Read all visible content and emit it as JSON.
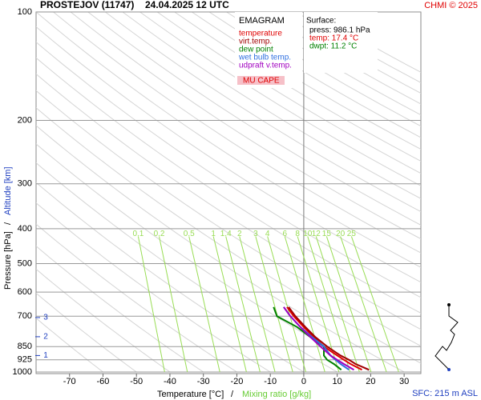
{
  "chart_data": {
    "type": "line",
    "title": "PROSTEJOV (11747)",
    "subtitle": "24.04.2025 12 UTC",
    "credit": "CHMI © 2025",
    "x_label": "Temperature [°C]",
    "x_label_sep": "/",
    "x_label2": "Mixing ratio [g/kg]",
    "y_label": "Pressure [hPa]",
    "y_label_sep": "/",
    "y_label2": "Altitude [km]",
    "y_log": true,
    "xlim": [
      -80,
      35
    ],
    "xticks": [
      -70,
      -60,
      -50,
      -40,
      -30,
      -20,
      -10,
      0,
      10,
      20,
      30
    ],
    "ylim": [
      1000,
      100
    ],
    "yticks": [
      100,
      200,
      300,
      400,
      500,
      600,
      700,
      850,
      925,
      1000
    ],
    "legend_title": "EMAGRAM",
    "legend": "top-right",
    "cape_label": "MU CAPE",
    "surface": {
      "title": "Surface:",
      "lines": [
        {
          "text": "press: 986.1 hPa",
          "color": "#000000"
        },
        {
          "text": "temp: 17.4 °C",
          "color": "#e00000"
        },
        {
          "text": "dwpt: 11.2 °C",
          "color": "#008000"
        }
      ]
    },
    "footer": "SFC: 215 m ASL",
    "altitude_ticks": [
      {
        "value": 1,
        "pressure": 900
      },
      {
        "value": 2,
        "pressure": 798
      },
      {
        "value": 3,
        "pressure": 706
      }
    ],
    "mixing_ratio_color": "#99dd55",
    "mixing_ratios": [
      0.1,
      0.2,
      0.5,
      1,
      1.4,
      2,
      3,
      4,
      6,
      8,
      10,
      12,
      15,
      20,
      25
    ],
    "pressure": [
      986,
      950,
      925,
      900,
      850,
      800,
      750,
      700,
      660
    ],
    "series": [
      {
        "name": "temperature",
        "color": "#e00000",
        "values": [
          17.4,
          14,
          12,
          10,
          6,
          3,
          0,
          -3,
          -5
        ]
      },
      {
        "name": "virt.temp.",
        "color": "#a00000",
        "values": [
          19.5,
          15.5,
          13.5,
          11,
          7,
          3.5,
          0.5,
          -2.5,
          -4.5
        ]
      },
      {
        "name": "dew point",
        "color": "#008000",
        "values": [
          11.2,
          9,
          7,
          6,
          6,
          2,
          -2,
          -8,
          -9
        ]
      },
      {
        "name": "wet bulb temp.",
        "color": "#3070e0",
        "values": [
          13.5,
          11,
          9.5,
          8,
          6,
          2.5,
          -1,
          -4,
          -6
        ]
      },
      {
        "name": "udpraft v.temp.",
        "color": "#a000c0",
        "values": [
          15,
          12,
          10,
          8,
          5,
          2,
          -1,
          -4,
          -6
        ]
      }
    ]
  }
}
